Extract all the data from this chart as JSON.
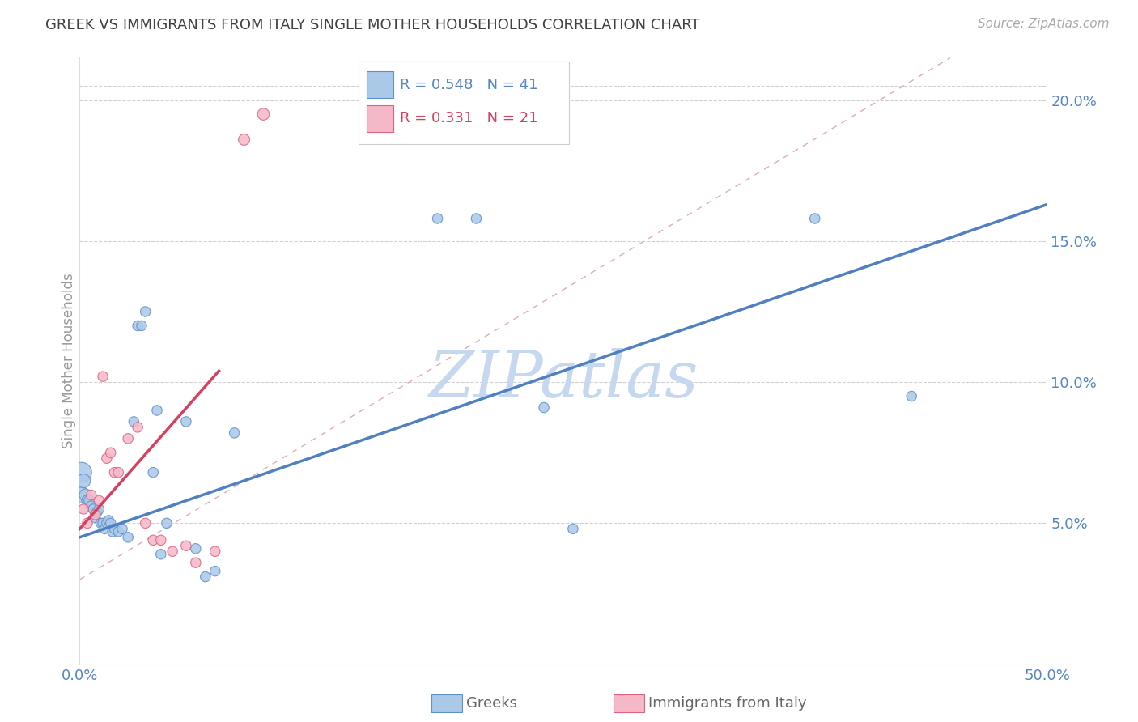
{
  "title": "GREEK VS IMMIGRANTS FROM ITALY SINGLE MOTHER HOUSEHOLDS CORRELATION CHART",
  "source_text": "Source: ZipAtlas.com",
  "ylabel": "Single Mother Households",
  "xlim": [
    0.0,
    0.5
  ],
  "ylim": [
    0.0,
    0.215
  ],
  "xticks": [
    0.0,
    0.1,
    0.2,
    0.3,
    0.4,
    0.5
  ],
  "xticklabels": [
    "0.0%",
    "",
    "",
    "",
    "",
    "50.0%"
  ],
  "yticks": [
    0.05,
    0.1,
    0.15,
    0.2
  ],
  "yticklabels": [
    "5.0%",
    "10.0%",
    "15.0%",
    "20.0%"
  ],
  "greek_R": 0.548,
  "greek_N": 41,
  "italy_R": 0.331,
  "italy_N": 21,
  "blue_color": "#aac8e8",
  "pink_color": "#f5b8c8",
  "blue_edge": "#6090c8",
  "pink_edge": "#e06080",
  "line_blue": "#5080c0",
  "line_pink": "#d84060",
  "diagonal_color": "#e0a0b0",
  "grid_color": "#cccccc",
  "title_color": "#404040",
  "axis_tick_color": "#5585c5",
  "watermark_color": "#c5d8f0",
  "greeks_x": [
    0.001,
    0.001,
    0.002,
    0.003,
    0.004,
    0.005,
    0.006,
    0.007,
    0.008,
    0.009,
    0.01,
    0.011,
    0.012,
    0.013,
    0.014,
    0.015,
    0.016,
    0.017,
    0.018,
    0.02,
    0.022,
    0.025,
    0.028,
    0.03,
    0.032,
    0.034,
    0.038,
    0.04,
    0.042,
    0.045,
    0.055,
    0.06,
    0.065,
    0.07,
    0.08,
    0.185,
    0.205,
    0.24,
    0.255,
    0.38,
    0.43
  ],
  "greeks_y": [
    0.068,
    0.06,
    0.065,
    0.06,
    0.058,
    0.058,
    0.056,
    0.055,
    0.052,
    0.054,
    0.055,
    0.05,
    0.05,
    0.048,
    0.05,
    0.051,
    0.05,
    0.047,
    0.048,
    0.047,
    0.048,
    0.045,
    0.086,
    0.12,
    0.12,
    0.125,
    0.068,
    0.09,
    0.039,
    0.05,
    0.086,
    0.041,
    0.031,
    0.033,
    0.082,
    0.158,
    0.158,
    0.091,
    0.048,
    0.158,
    0.095
  ],
  "greeks_size": [
    320,
    200,
    150,
    120,
    100,
    90,
    90,
    80,
    80,
    80,
    80,
    80,
    80,
    80,
    80,
    80,
    80,
    80,
    80,
    80,
    80,
    80,
    80,
    80,
    80,
    80,
    80,
    80,
    80,
    80,
    80,
    80,
    80,
    80,
    80,
    80,
    80,
    80,
    80,
    80,
    80
  ],
  "italy_x": [
    0.002,
    0.004,
    0.006,
    0.008,
    0.01,
    0.012,
    0.014,
    0.016,
    0.018,
    0.02,
    0.025,
    0.03,
    0.034,
    0.038,
    0.042,
    0.048,
    0.055,
    0.06,
    0.07,
    0.085,
    0.095
  ],
  "italy_y": [
    0.055,
    0.05,
    0.06,
    0.053,
    0.058,
    0.102,
    0.073,
    0.075,
    0.068,
    0.068,
    0.08,
    0.084,
    0.05,
    0.044,
    0.044,
    0.04,
    0.042,
    0.036,
    0.04,
    0.186,
    0.195
  ],
  "italy_size": [
    80,
    80,
    80,
    80,
    80,
    80,
    80,
    80,
    80,
    80,
    80,
    80,
    80,
    80,
    80,
    80,
    80,
    80,
    80,
    100,
    110
  ],
  "blue_line_x0": 0.0,
  "blue_line_y0": 0.045,
  "blue_line_x1": 0.5,
  "blue_line_y1": 0.163,
  "pink_line_x0": 0.0,
  "pink_line_y0": 0.048,
  "pink_line_x1": 0.072,
  "pink_line_y1": 0.104
}
